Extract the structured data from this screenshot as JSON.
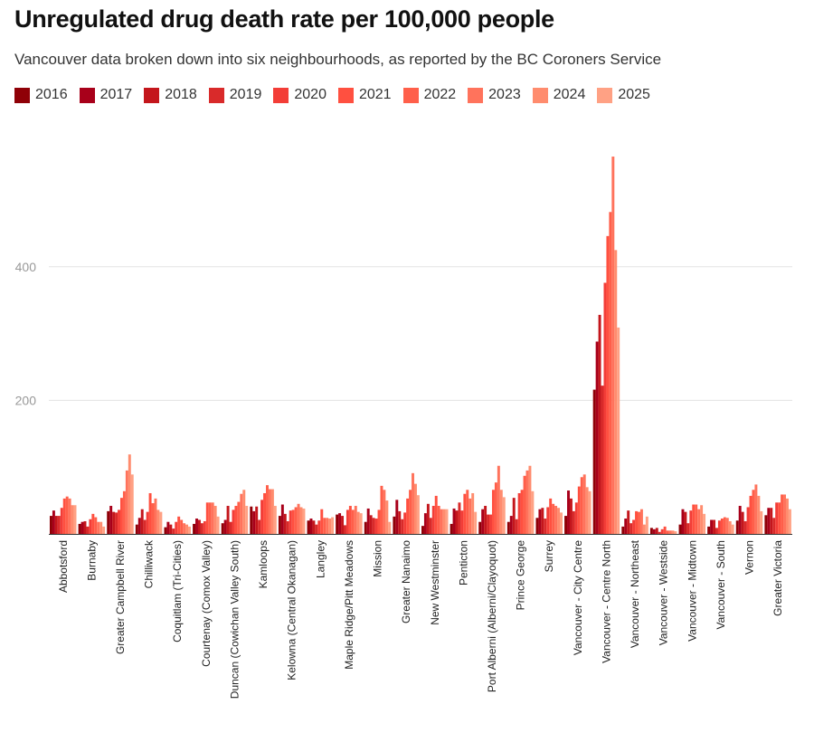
{
  "title": "Unregulated drug death rate per 100,000 people",
  "subtitle": "Vancouver data broken down into six neighbourhoods, as reported by the BC Coroners Service",
  "chart_data": {
    "type": "bar",
    "title": "Unregulated drug death rate per 100,000 people",
    "subtitle": "Vancouver data broken down into six neighbourhoods, as reported by the BC Coroners Service",
    "xlabel": "",
    "ylabel": "",
    "ylim": [
      0,
      580
    ],
    "yticks": [
      200,
      400
    ],
    "grid": true,
    "legend_position": "top",
    "categories": [
      "Abbotsford",
      "Burnaby",
      "Greater Campbell River",
      "Chilliwack",
      "Coquitlam (Tri-Cities)",
      "Courtenay (Comox Valley)",
      "Duncan (Cowichan Valley South)",
      "Kamloops",
      "Kelowna (Central Okanagan)",
      "Langley",
      "Maple Ridge/Pitt Meadows",
      "Mission",
      "Greater Nanaimo",
      "New Westminster",
      "Penticton",
      "Port Alberni (Alberni/Clayoquot)",
      "Prince George",
      "Surrey",
      "Vancouver - City Centre",
      "Vancouver - Centre North",
      "Vancouver - Northeast",
      "Vancouver - Westside",
      "Vancouver - Midtown",
      "Vancouver - South",
      "Vernon",
      "Greater Victoria"
    ],
    "series": [
      {
        "name": "2016",
        "color": "#8f0007",
        "values": [
          27,
          15,
          34,
          14,
          10,
          15,
          16,
          41,
          27,
          20,
          29,
          18,
          26,
          12,
          15,
          18,
          18,
          24,
          27,
          216,
          11,
          9,
          14,
          11,
          20,
          28
        ]
      },
      {
        "name": "2017",
        "color": "#a8001a",
        "values": [
          35,
          18,
          42,
          24,
          18,
          23,
          21,
          34,
          44,
          23,
          31,
          38,
          51,
          31,
          38,
          37,
          27,
          37,
          65,
          288,
          23,
          7,
          37,
          21,
          42,
          39
        ]
      },
      {
        "name": "2018",
        "color": "#c4161c",
        "values": [
          27,
          19,
          33,
          37,
          14,
          21,
          42,
          41,
          30,
          20,
          27,
          28,
          34,
          45,
          35,
          42,
          54,
          39,
          53,
          328,
          35,
          9,
          33,
          21,
          33,
          39
        ]
      },
      {
        "name": "2019",
        "color": "#d92a2a",
        "values": [
          27,
          11,
          32,
          21,
          8,
          16,
          18,
          21,
          19,
          14,
          13,
          24,
          22,
          24,
          47,
          29,
          22,
          23,
          34,
          222,
          16,
          3,
          16,
          9,
          19,
          24
        ]
      },
      {
        "name": "2020",
        "color": "#f33d37",
        "values": [
          39,
          22,
          36,
          33,
          18,
          19,
          36,
          51,
          35,
          20,
          36,
          23,
          32,
          42,
          35,
          29,
          61,
          40,
          47,
          376,
          21,
          7,
          35,
          20,
          40,
          47
        ]
      },
      {
        "name": "2021",
        "color": "#ff5040",
        "values": [
          53,
          30,
          54,
          61,
          26,
          47,
          42,
          61,
          36,
          37,
          42,
          36,
          53,
          57,
          60,
          66,
          66,
          53,
          71,
          446,
          34,
          11,
          44,
          23,
          57,
          47
        ]
      },
      {
        "name": "2022",
        "color": "#ff5f4a",
        "values": [
          56,
          25,
          64,
          46,
          21,
          47,
          48,
          73,
          40,
          24,
          36,
          72,
          66,
          42,
          66,
          77,
          87,
          45,
          85,
          482,
          33,
          5,
          44,
          25,
          66,
          59
        ]
      },
      {
        "name": "2023",
        "color": "#ff735c",
        "values": [
          53,
          18,
          95,
          53,
          16,
          47,
          60,
          67,
          45,
          24,
          42,
          66,
          91,
          37,
          53,
          102,
          95,
          42,
          89,
          565,
          37,
          5,
          37,
          24,
          74,
          59
        ]
      },
      {
        "name": "2024",
        "color": "#ff8c6e",
        "values": [
          43,
          18,
          119,
          36,
          14,
          42,
          66,
          67,
          40,
          23,
          33,
          50,
          75,
          37,
          61,
          66,
          102,
          39,
          70,
          425,
          14,
          5,
          43,
          19,
          57,
          53
        ]
      },
      {
        "name": "2025",
        "color": "#ffa184",
        "values": [
          43,
          11,
          89,
          33,
          11,
          26,
          42,
          42,
          38,
          25,
          31,
          18,
          58,
          37,
          33,
          55,
          64,
          32,
          64,
          309,
          26,
          4,
          30,
          14,
          34,
          37
        ]
      }
    ]
  }
}
